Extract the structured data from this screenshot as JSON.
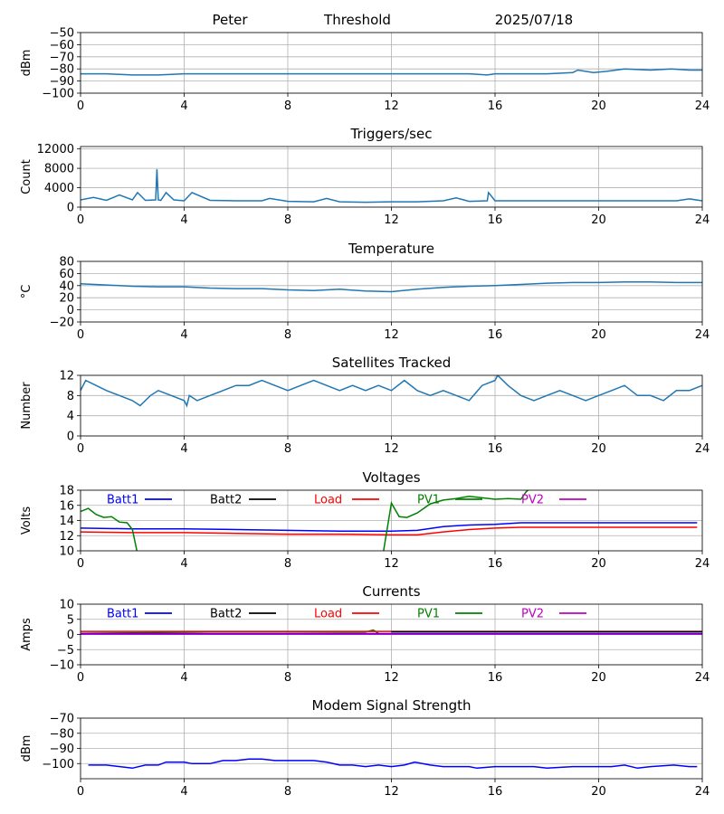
{
  "header": {
    "station": "Peter",
    "mode": "Threshold",
    "date": "2025/07/18"
  },
  "colors": {
    "default": "#1f77b4",
    "Batt1": "#0000ff",
    "Batt2": "#000000",
    "Load": "#ff0000",
    "PV1": "#008000",
    "PV2": "#bf00bf",
    "grid": "#b0b0b0"
  },
  "chart_data": [
    {
      "id": "threshold",
      "type": "line",
      "title": "",
      "ylabel": "dBm",
      "xlim": [
        0,
        24
      ],
      "ylim": [
        -100,
        -50
      ],
      "xticks": [
        0,
        4,
        8,
        12,
        16,
        20,
        24
      ],
      "yticks": [
        -100,
        -90,
        -80,
        -70,
        -60,
        -50
      ],
      "series": [
        {
          "color": "default",
          "x": [
            0,
            1,
            2,
            3,
            4,
            5,
            6,
            7,
            8,
            9,
            10,
            11,
            12,
            13,
            14,
            15,
            15.7,
            16,
            17,
            18,
            19,
            19.2,
            19.8,
            20.3,
            21,
            22,
            22.8,
            23.5,
            24
          ],
          "y": [
            -84,
            -84,
            -85,
            -85,
            -84,
            -84,
            -84,
            -84,
            -84,
            -84,
            -84,
            -84,
            -84,
            -84,
            -84,
            -84,
            -85,
            -84,
            -84,
            -84,
            -83,
            -81,
            -83,
            -82,
            -80,
            -81,
            -80,
            -81,
            -81
          ]
        }
      ]
    },
    {
      "id": "triggers",
      "type": "line",
      "title": "Triggers/sec",
      "ylabel": "Count",
      "xlim": [
        0,
        24
      ],
      "ylim": [
        0,
        12500
      ],
      "xticks": [
        0,
        4,
        8,
        12,
        16,
        20,
        24
      ],
      "yticks": [
        0,
        4000,
        8000,
        12000
      ],
      "series": [
        {
          "color": "default",
          "x": [
            0,
            0.5,
            1,
            1.5,
            2,
            2.2,
            2.5,
            2.9,
            2.95,
            3.0,
            3.1,
            3.3,
            3.6,
            4,
            4.3,
            5,
            6,
            7,
            7.3,
            8,
            9,
            9.5,
            10,
            11,
            12,
            13,
            14,
            14.5,
            15,
            15.7,
            15.75,
            16,
            17,
            18,
            19,
            20,
            21,
            22,
            23,
            23.5,
            24
          ],
          "y": [
            1500,
            2000,
            1400,
            2500,
            1500,
            3000,
            1400,
            1500,
            7800,
            1500,
            1400,
            3000,
            1500,
            1300,
            3000,
            1400,
            1300,
            1300,
            1800,
            1200,
            1100,
            1800,
            1100,
            1000,
            1100,
            1100,
            1300,
            1900,
            1200,
            1300,
            3000,
            1300,
            1300,
            1300,
            1300,
            1300,
            1300,
            1300,
            1300,
            1700,
            1300
          ]
        }
      ]
    },
    {
      "id": "temperature",
      "type": "line",
      "title": "Temperature",
      "ylabel": "°C",
      "xlim": [
        0,
        24
      ],
      "ylim": [
        -20,
        80
      ],
      "xticks": [
        0,
        4,
        8,
        12,
        16,
        20,
        24
      ],
      "yticks": [
        -20,
        0,
        20,
        40,
        60,
        80
      ],
      "series": [
        {
          "color": "default",
          "x": [
            0,
            1,
            2,
            3,
            4,
            5,
            6,
            7,
            8,
            9,
            10,
            11,
            12,
            13,
            14,
            15,
            16,
            17,
            18,
            19,
            20,
            21,
            22,
            23,
            24
          ],
          "y": [
            43,
            41,
            39,
            38,
            38,
            36,
            35,
            35,
            33,
            32,
            34,
            31,
            30,
            34,
            37,
            39,
            40,
            42,
            44,
            45,
            45,
            46,
            46,
            45,
            45
          ]
        }
      ]
    },
    {
      "id": "satellites",
      "type": "line",
      "title": "Satellites Tracked",
      "ylabel": "Number",
      "xlim": [
        0,
        24
      ],
      "ylim": [
        0,
        12
      ],
      "xticks": [
        0,
        4,
        8,
        12,
        16,
        20,
        24
      ],
      "yticks": [
        0,
        4,
        8,
        12
      ],
      "series": [
        {
          "color": "default",
          "x": [
            0,
            0.2,
            0.6,
            1,
            1.5,
            2,
            2.3,
            2.7,
            3,
            3.5,
            4,
            4.1,
            4.2,
            4.5,
            5,
            5.5,
            6,
            6.5,
            7,
            7.5,
            8,
            8.5,
            9,
            9.5,
            10,
            10.5,
            11,
            11.5,
            12,
            12.5,
            13,
            13.5,
            14,
            14.5,
            15,
            15.5,
            16,
            16.1,
            16.5,
            17,
            17.5,
            18,
            18.5,
            19,
            19.5,
            20,
            20.5,
            21,
            21.5,
            22,
            22.5,
            23,
            23.5,
            24
          ],
          "y": [
            9,
            11,
            10,
            9,
            8,
            7,
            6,
            8,
            9,
            8,
            7,
            6,
            8,
            7,
            8,
            9,
            10,
            10,
            11,
            10,
            9,
            10,
            11,
            10,
            9,
            10,
            9,
            10,
            9,
            11,
            9,
            8,
            9,
            8,
            7,
            10,
            11,
            12,
            10,
            8,
            7,
            8,
            9,
            8,
            7,
            8,
            9,
            10,
            8,
            8,
            7,
            9,
            9,
            10
          ]
        }
      ]
    },
    {
      "id": "voltages",
      "type": "line",
      "title": "Voltages",
      "ylabel": "Volts",
      "xlim": [
        0,
        24
      ],
      "ylim": [
        10,
        18
      ],
      "xticks": [
        0,
        4,
        8,
        12,
        16,
        20,
        24
      ],
      "yticks": [
        10,
        12,
        14,
        16,
        18
      ],
      "legend": [
        "Batt1",
        "Batt2",
        "Load",
        "PV1",
        "PV2"
      ],
      "series": [
        {
          "name": "Batt1",
          "color": "Batt1",
          "x": [
            0,
            2,
            4,
            6,
            8,
            10,
            12,
            13,
            14,
            15,
            16,
            17,
            18,
            20,
            22,
            23.8
          ],
          "y": [
            13.0,
            12.9,
            12.9,
            12.8,
            12.7,
            12.6,
            12.6,
            12.7,
            13.2,
            13.4,
            13.5,
            13.7,
            13.7,
            13.7,
            13.7,
            13.7
          ]
        },
        {
          "name": "Load",
          "color": "Load",
          "x": [
            0,
            2,
            4,
            6,
            8,
            10,
            12,
            13,
            14,
            15,
            16,
            17,
            18,
            20,
            22,
            23.8
          ],
          "y": [
            12.5,
            12.4,
            12.4,
            12.3,
            12.2,
            12.2,
            12.1,
            12.1,
            12.5,
            12.8,
            13.0,
            13.1,
            13.1,
            13.1,
            13.1,
            13.1
          ]
        },
        {
          "name": "PV1",
          "color": "PV1",
          "x": [
            0,
            0.3,
            0.6,
            0.9,
            1.2,
            1.5,
            1.8,
            2.0,
            2.3,
            11.6,
            12.0,
            12.3,
            12.6,
            13.0,
            13.5,
            14.0,
            14.5,
            15.0,
            15.5,
            16.0,
            16.5,
            17.0,
            17.2,
            17.5
          ],
          "y": [
            15.2,
            15.6,
            14.8,
            14.4,
            14.5,
            13.8,
            13.7,
            12.8,
            8.0,
            8.0,
            16.3,
            14.5,
            14.4,
            15.0,
            16.2,
            16.7,
            16.9,
            17.2,
            17.0,
            16.8,
            16.9,
            16.8,
            17.8,
            18.6
          ]
        }
      ]
    },
    {
      "id": "currents",
      "type": "line",
      "title": "Currents",
      "ylabel": "Amps",
      "xlim": [
        0,
        24
      ],
      "ylim": [
        -10,
        10
      ],
      "xticks": [
        0,
        4,
        8,
        12,
        16,
        20,
        24
      ],
      "yticks": [
        -10,
        -5,
        0,
        5,
        10
      ],
      "legend": [
        "Batt1",
        "Batt2",
        "Load",
        "PV1",
        "PV2"
      ],
      "series": [
        {
          "name": "PV1",
          "color": "PV1",
          "x": [
            0,
            2,
            3,
            5,
            8,
            11,
            11.3,
            11.5
          ],
          "y": [
            0.4,
            0.5,
            0.7,
            0.9,
            0.9,
            0.8,
            1.5,
            0.4
          ]
        },
        {
          "name": "Batt1",
          "color": "Batt1",
          "x": [
            0,
            24
          ],
          "y": [
            0.3,
            0.3
          ]
        },
        {
          "name": "PV2",
          "color": "PV2",
          "x": [
            0,
            24
          ],
          "y": [
            0.1,
            0.1
          ]
        },
        {
          "name": "Load",
          "color": "Load",
          "x": [
            0,
            4,
            8,
            12,
            16,
            20,
            24
          ],
          "y": [
            1.0,
            1.0,
            1.0,
            1.0,
            1.0,
            1.0,
            1.0
          ]
        },
        {
          "name": "Batt2",
          "color": "Batt2",
          "x": [
            12,
            16,
            20,
            24
          ],
          "y": [
            0.9,
            0.9,
            0.9,
            0.9
          ]
        }
      ]
    },
    {
      "id": "modem",
      "type": "line",
      "title": "Modem Signal Strength",
      "ylabel": "dBm",
      "xlim": [
        0,
        24
      ],
      "ylim": [
        -110,
        -70
      ],
      "xticks": [
        0,
        4,
        8,
        12,
        16,
        20,
        24
      ],
      "yticks": [
        -100,
        -90,
        -80,
        -70
      ],
      "series": [
        {
          "color": "Batt1",
          "x": [
            0.3,
            1,
            2,
            2.5,
            3,
            3.3,
            4,
            4.3,
            5,
            5.5,
            6,
            6.5,
            7,
            7.5,
            8,
            9,
            9.5,
            10,
            10.5,
            11,
            11.5,
            12,
            12.5,
            12.9,
            13.5,
            14,
            15,
            15.3,
            16,
            17,
            17.5,
            18,
            19,
            20,
            20.5,
            21,
            21.5,
            22,
            22.9,
            23.5,
            23.8
          ],
          "y": [
            -101,
            -101,
            -103,
            -101,
            -101,
            -99,
            -99,
            -100,
            -100,
            -98,
            -98,
            -97,
            -97,
            -98,
            -98,
            -98,
            -99,
            -101,
            -101,
            -102,
            -101,
            -102,
            -101,
            -99,
            -101,
            -102,
            -102,
            -103,
            -102,
            -102,
            -102,
            -103,
            -102,
            -102,
            -102,
            -101,
            -103,
            -102,
            -101,
            -102,
            -102
          ]
        }
      ]
    }
  ]
}
